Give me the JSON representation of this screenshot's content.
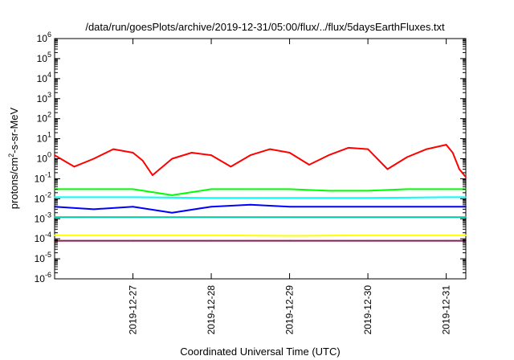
{
  "chart_data": {
    "type": "line",
    "title": "/data/run/goesPlots/archive/2019-12-31/05:00/flux/../flux/5daysEarthFluxes.txt",
    "xlabel": "Coordinated Universal Time (UTC)",
    "ylabel": "protons/cm²-s-sr-MeV",
    "yscale": "log",
    "ylim": [
      1e-06,
      1000000.0
    ],
    "yticks": [
      {
        "value": 1e-06,
        "base": "10",
        "exp": "-6"
      },
      {
        "value": 1e-05,
        "base": "10",
        "exp": "-5"
      },
      {
        "value": 0.0001,
        "base": "10",
        "exp": "-4"
      },
      {
        "value": 0.001,
        "base": "10",
        "exp": "-3"
      },
      {
        "value": 0.01,
        "base": "10",
        "exp": "-2"
      },
      {
        "value": 0.1,
        "base": "10",
        "exp": "-1"
      },
      {
        "value": 1.0,
        "base": "10",
        "exp": "0"
      },
      {
        "value": 10.0,
        "base": "10",
        "exp": "1"
      },
      {
        "value": 100.0,
        "base": "10",
        "exp": "2"
      },
      {
        "value": 1000.0,
        "base": "10",
        "exp": "3"
      },
      {
        "value": 10000.0,
        "base": "10",
        "exp": "4"
      },
      {
        "value": 100000.0,
        "base": "10",
        "exp": "5"
      },
      {
        "value": 1000000.0,
        "base": "10",
        "exp": "6"
      }
    ],
    "xlim": [
      "2019-12-26T00:00",
      "2019-12-31T06:00"
    ],
    "xticks": [
      {
        "value": "2019-12-27T00:00",
        "label": "2019-12-27"
      },
      {
        "value": "2019-12-28T00:00",
        "label": "2019-12-28"
      },
      {
        "value": "2019-12-29T00:00",
        "label": "2019-12-29"
      },
      {
        "value": "2019-12-30T00:00",
        "label": "2019-12-30"
      },
      {
        "value": "2019-12-31T00:00",
        "label": "2019-12-31"
      }
    ],
    "grid": false,
    "legend": "none",
    "series": [
      {
        "color": "#ff0000",
        "x": [
          "2019-12-26T00:00",
          "2019-12-26T06:00",
          "2019-12-26T12:00",
          "2019-12-26T18:00",
          "2019-12-27T00:00",
          "2019-12-27T03:00",
          "2019-12-27T06:00",
          "2019-12-27T12:00",
          "2019-12-27T18:00",
          "2019-12-28T00:00",
          "2019-12-28T06:00",
          "2019-12-28T12:00",
          "2019-12-28T18:00",
          "2019-12-29T00:00",
          "2019-12-29T06:00",
          "2019-12-29T12:00",
          "2019-12-29T18:00",
          "2019-12-30T00:00",
          "2019-12-30T06:00",
          "2019-12-30T12:00",
          "2019-12-30T18:00",
          "2019-12-31T00:00",
          "2019-12-31T02:00",
          "2019-12-31T04:00",
          "2019-12-31T06:00"
        ],
        "y": [
          1.5,
          0.4,
          1.0,
          3.0,
          2.0,
          0.8,
          0.15,
          1.0,
          2.0,
          1.5,
          0.4,
          1.5,
          3.0,
          2.0,
          0.5,
          1.5,
          3.5,
          3.0,
          0.3,
          1.2,
          3.0,
          5.0,
          2.0,
          0.3,
          0.12
        ]
      },
      {
        "color": "#00ff00",
        "x": [
          "2019-12-26T00:00",
          "2019-12-26T12:00",
          "2019-12-27T00:00",
          "2019-12-27T12:00",
          "2019-12-28T00:00",
          "2019-12-28T12:00",
          "2019-12-29T00:00",
          "2019-12-29T12:00",
          "2019-12-30T00:00",
          "2019-12-30T12:00",
          "2019-12-31T00:00",
          "2019-12-31T06:00"
        ],
        "y": [
          0.03,
          0.03,
          0.03,
          0.015,
          0.03,
          0.03,
          0.03,
          0.025,
          0.025,
          0.03,
          0.03,
          0.03
        ]
      },
      {
        "color": "#00ffff",
        "x": [
          "2019-12-26T00:00",
          "2019-12-27T00:00",
          "2019-12-28T00:00",
          "2019-12-29T00:00",
          "2019-12-30T00:00",
          "2019-12-31T00:00",
          "2019-12-31T06:00"
        ],
        "y": [
          0.012,
          0.012,
          0.011,
          0.011,
          0.011,
          0.012,
          0.012
        ]
      },
      {
        "color": "#0000ff",
        "x": [
          "2019-12-26T00:00",
          "2019-12-26T12:00",
          "2019-12-27T00:00",
          "2019-12-27T12:00",
          "2019-12-28T00:00",
          "2019-12-28T12:00",
          "2019-12-29T00:00",
          "2019-12-29T12:00",
          "2019-12-30T00:00",
          "2019-12-30T12:00",
          "2019-12-31T00:00",
          "2019-12-31T06:00"
        ],
        "y": [
          0.004,
          0.003,
          0.004,
          0.002,
          0.004,
          0.005,
          0.004,
          0.004,
          0.004,
          0.004,
          0.004,
          0.004
        ]
      },
      {
        "color": "#00c8a0",
        "x": [
          "2019-12-26T00:00",
          "2019-12-27T00:00",
          "2019-12-28T00:00",
          "2019-12-29T00:00",
          "2019-12-30T00:00",
          "2019-12-31T00:00",
          "2019-12-31T06:00"
        ],
        "y": [
          0.0012,
          0.0012,
          0.0012,
          0.0012,
          0.0012,
          0.0012,
          0.0012
        ]
      },
      {
        "color": "#ffff00",
        "x": [
          "2019-12-26T00:00",
          "2019-12-27T00:00",
          "2019-12-28T00:00",
          "2019-12-29T00:00",
          "2019-12-30T00:00",
          "2019-12-31T00:00",
          "2019-12-31T06:00"
        ],
        "y": [
          0.00015,
          0.00015,
          0.00015,
          0.00014,
          0.00015,
          0.00015,
          0.00015
        ]
      },
      {
        "color": "#8b1a50",
        "x": [
          "2019-12-26T00:00",
          "2019-12-27T00:00",
          "2019-12-28T00:00",
          "2019-12-29T00:00",
          "2019-12-30T00:00",
          "2019-12-31T00:00",
          "2019-12-31T06:00"
        ],
        "y": [
          8e-05,
          8e-05,
          8e-05,
          8e-05,
          8e-05,
          8e-05,
          8e-05
        ]
      }
    ]
  }
}
